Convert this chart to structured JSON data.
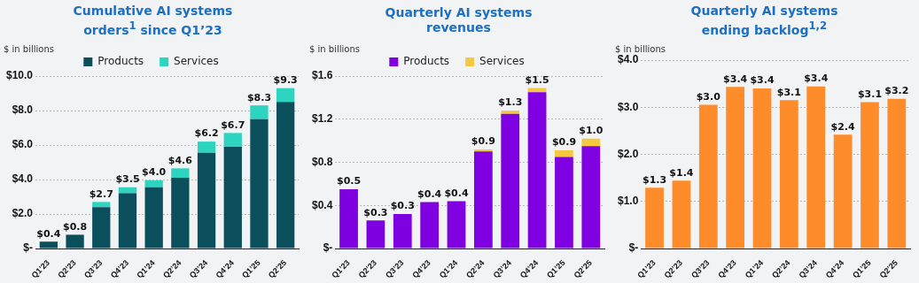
{
  "chart_data": [
    {
      "type": "bar",
      "title": "Cumulative AI systems orders$^{1}$ since Q1’23",
      "ylabel": "$ in billions",
      "categories": [
        "Q1’23",
        "Q2’23",
        "Q3’23",
        "Q4’23",
        "Q1’24",
        "Q2’24",
        "Q3’24",
        "Q4’24",
        "Q1’25",
        "Q2’25"
      ],
      "stacked": true,
      "series": [
        {
          "name": "Products",
          "color": "#0b4f5c",
          "values": [
            0.4,
            0.8,
            2.4,
            3.2,
            3.55,
            4.1,
            5.55,
            5.9,
            7.5,
            8.5
          ]
        },
        {
          "name": "Services",
          "color": "#2dd4bf",
          "values": [
            0,
            null,
            0.3,
            0.35,
            0.4,
            0.55,
            0.65,
            0.8,
            0.8,
            0.8
          ]
        }
      ],
      "totals": [
        "$0.4",
        "$0.8",
        "$2.7",
        "$3.5",
        "$4.0",
        "$4.6",
        "$6.2",
        "$6.7",
        "$8.3",
        "$9.3"
      ],
      "ylim": [
        0,
        10
      ],
      "yticks": [
        {
          "value": 0,
          "label": "$-"
        },
        {
          "value": 2,
          "label": "$2.0"
        },
        {
          "value": 4,
          "label": "$4.0"
        },
        {
          "value": 6,
          "label": "$6.0"
        },
        {
          "value": 8,
          "label": "$8.0"
        },
        {
          "value": 10,
          "label": "$10.0"
        }
      ],
      "grid": "y",
      "legend": "top"
    },
    {
      "type": "bar",
      "title": "Quarterly AI systems revenues",
      "ylabel": "$ in billions",
      "categories": [
        "Q1’23",
        "Q2’23",
        "Q3’23",
        "Q4’23",
        "Q1’24",
        "Q2’24",
        "Q3’24",
        "Q4’24",
        "Q1’25",
        "Q2’25"
      ],
      "stacked": true,
      "series": [
        {
          "name": "Products",
          "color": "#7f00e0",
          "values": [
            0.55,
            0.26,
            0.32,
            0.43,
            0.44,
            0.9,
            1.25,
            1.45,
            0.85,
            0.95
          ]
        },
        {
          "name": "Services",
          "color": "#f5c842",
          "values": [
            0,
            0,
            0,
            0,
            0,
            0.02,
            0.03,
            0.04,
            0.06,
            0.07
          ]
        }
      ],
      "totals": [
        "$0.5",
        "$0.3",
        "$0.3",
        "$0.4",
        "$0.4",
        "$0.9",
        "$1.3",
        "$1.5",
        "$0.9",
        "$1.0"
      ],
      "ylim": [
        0,
        1.6
      ],
      "yticks": [
        {
          "value": 0,
          "label": "$-"
        },
        {
          "value": 0.4,
          "label": "$0.4"
        },
        {
          "value": 0.8,
          "label": "$0.8"
        },
        {
          "value": 1.2,
          "label": "$1.2"
        },
        {
          "value": 1.6,
          "label": "$1.6"
        }
      ],
      "grid": "y",
      "legend": "top"
    },
    {
      "type": "bar",
      "title": "Quarterly AI systems ending backlog$^{1,2}$",
      "ylabel": "$ in billions",
      "categories": [
        "Q1’23",
        "Q2’23",
        "Q3’23",
        "Q4’23",
        "Q1’24",
        "Q2’24",
        "Q3’24",
        "Q4’24",
        "Q1’25",
        "Q2’25"
      ],
      "values": [
        1.29,
        1.44,
        3.05,
        3.43,
        3.4,
        3.15,
        3.44,
        2.42,
        3.11,
        3.18
      ],
      "color": "#ff8c2a",
      "value_labels": [
        "$1.3",
        "$1.4",
        "$3.0",
        "$3.4",
        "$3.4",
        "$3.1",
        "$3.4",
        "$2.4",
        "$3.1",
        "$3.2"
      ],
      "ylim": [
        0,
        4
      ],
      "yticks": [
        {
          "value": 0,
          "label": "$-"
        },
        {
          "value": 1,
          "label": "$1.0"
        },
        {
          "value": 2,
          "label": "$2.0"
        },
        {
          "value": 3,
          "label": "$3.0"
        },
        {
          "value": 4,
          "label": "$4.0"
        }
      ],
      "grid": "y"
    }
  ]
}
